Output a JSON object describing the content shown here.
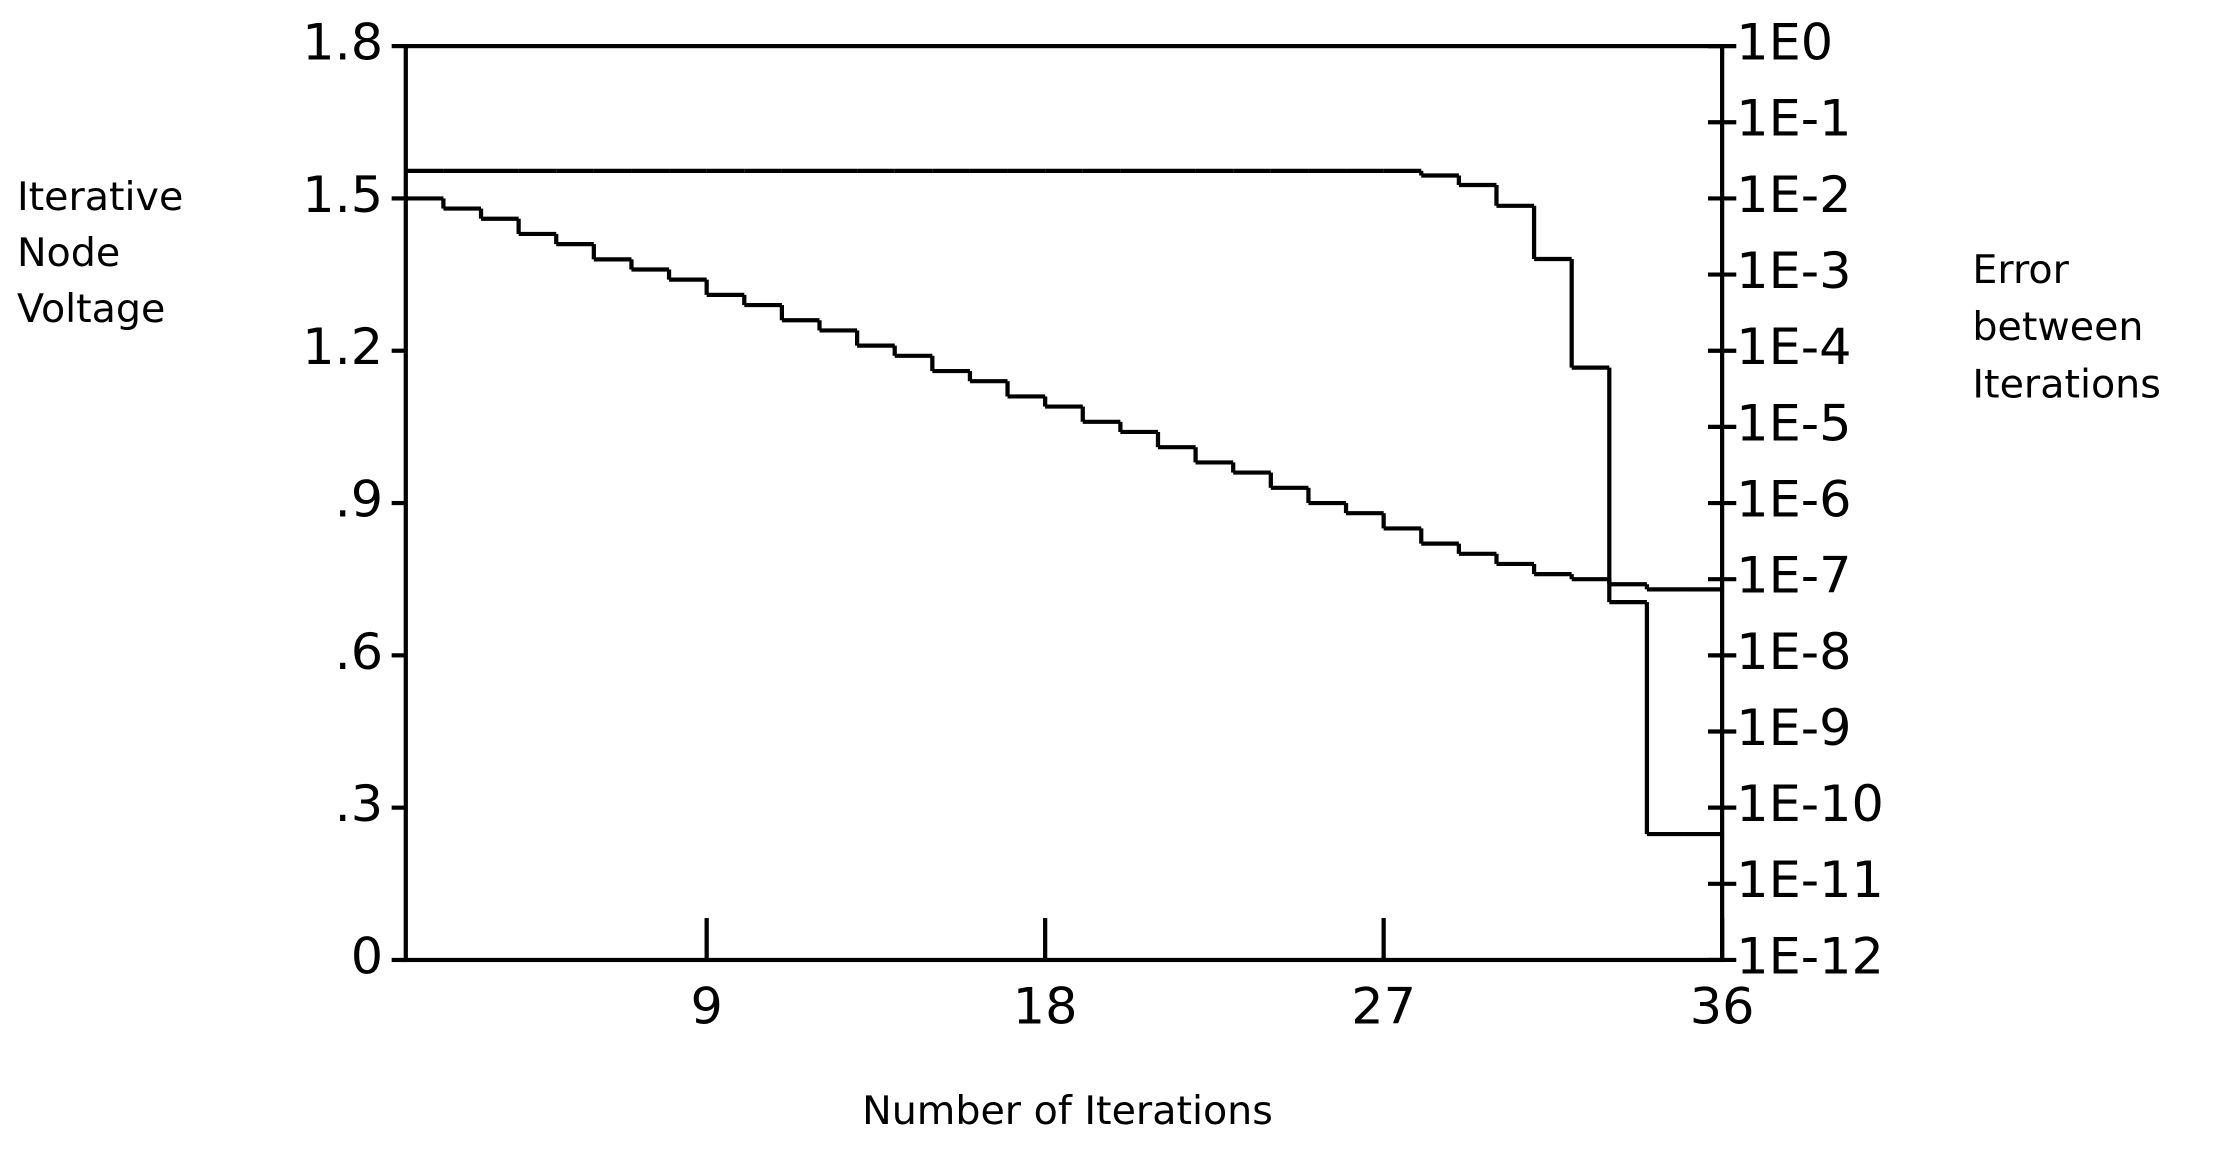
{
  "chart_data": {
    "type": "step",
    "xlabel": "Number of Iterations",
    "ylabel": [
      "Iterative",
      "Node",
      "Voltage"
    ],
    "y2label": [
      "Error",
      "between",
      "Iterations"
    ],
    "x": [
      1,
      2,
      3,
      4,
      5,
      6,
      7,
      8,
      9,
      10,
      11,
      12,
      13,
      14,
      15,
      16,
      17,
      18,
      19,
      20,
      21,
      22,
      23,
      24,
      25,
      26,
      27,
      28,
      29,
      30,
      31,
      32,
      33,
      34,
      35
    ],
    "xlim": [
      1,
      36
    ],
    "xticks": [
      9,
      18,
      27,
      36
    ],
    "ylim": [
      0,
      1.8
    ],
    "yticks": [
      0,
      {
        "value": 0.3,
        "label": ".3"
      },
      {
        "value": 0.6,
        "label": ".6"
      },
      {
        "value": 0.9,
        "label": ".9"
      },
      1.2,
      1.5,
      1.8
    ],
    "y2lim": [
      1e-12,
      1
    ],
    "y2log": true,
    "y2ticks": [
      {
        "value": 1,
        "label": "1E0"
      },
      {
        "value": 0.1,
        "label": "1E-1"
      },
      {
        "value": 0.01,
        "label": "1E-2"
      },
      {
        "value": 0.001,
        "label": "1E-3"
      },
      {
        "value": 0.0001,
        "label": "1E-4"
      },
      {
        "value": 1e-05,
        "label": "1E-5"
      },
      {
        "value": 1e-06,
        "label": "1E-6"
      },
      {
        "value": 1e-07,
        "label": "1E-7"
      },
      {
        "value": 1e-08,
        "label": "1E-8"
      },
      {
        "value": 1e-09,
        "label": "1E-9"
      },
      {
        "value": 1e-10,
        "label": "1E-10"
      },
      {
        "value": 1e-11,
        "label": "1E-11"
      },
      {
        "value": 1e-12,
        "label": "1E-12"
      }
    ],
    "grid": false,
    "series": [
      {
        "color": "#000000",
        "values": [
          1.5,
          1.48,
          1.46,
          1.43,
          1.41,
          1.38,
          1.36,
          1.34,
          1.31,
          1.29,
          1.26,
          1.24,
          1.21,
          1.19,
          1.16,
          1.14,
          1.11,
          1.09,
          1.06,
          1.04,
          1.01,
          0.98,
          0.96,
          0.93,
          0.9,
          0.88,
          0.85,
          0.82,
          0.8,
          0.78,
          0.76,
          0.75,
          0.74,
          0.73,
          0.73
        ]
      },
      {
        "color": "#000000",
        "axis": "y2",
        "values": [
          0.023,
          0.023,
          0.023,
          0.023,
          0.023,
          0.023,
          0.023,
          0.023,
          0.023,
          0.023,
          0.023,
          0.023,
          0.023,
          0.023,
          0.023,
          0.023,
          0.023,
          0.023,
          0.023,
          0.023,
          0.023,
          0.023,
          0.023,
          0.023,
          0.023,
          0.023,
          0.023,
          0.02,
          0.015,
          0.008,
          0.0016,
          6e-05,
          5e-08,
          4.5e-11,
          4.5e-11
        ]
      }
    ]
  }
}
